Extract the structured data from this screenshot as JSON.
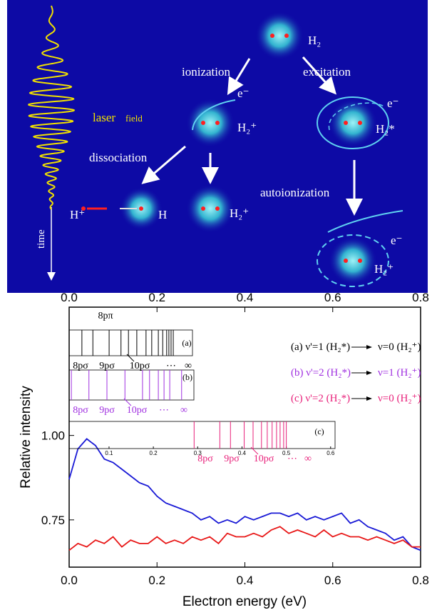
{
  "diagram": {
    "h2": "H₂",
    "ionization": "ionization",
    "excitation": "excitation",
    "electron_1": "e⁻",
    "electron_2": "e⁻",
    "electron_3": "e⁻",
    "h2_ion_1": "H₂⁺",
    "h2_excited": "H₂*",
    "laser": "laser",
    "field": "field",
    "dissociation": "dissociation",
    "autoionization": "autoionization",
    "proton": "H⁺",
    "hydrogen": "H",
    "h2_ion_2": "H₂⁺",
    "h2_ion_3": "H₂⁺",
    "time": "time"
  },
  "chart_data": {
    "type": "line",
    "x_label": "Electron energy (eV)",
    "y_label": "Relative intensity",
    "xlim": [
      0,
      0.8
    ],
    "ylim": [
      0.61,
      1.38
    ],
    "xticks": [
      {
        "value": 0,
        "label": "0.0"
      },
      0.2,
      0.4,
      0.6,
      0.8
    ],
    "yticks": [
      0.75,
      {
        "value": 1,
        "label": "1.00"
      }
    ],
    "x": [
      0,
      0.02,
      0.04,
      0.06,
      0.08,
      0.1,
      0.12,
      0.14,
      0.16,
      0.18,
      0.2,
      0.22,
      0.24,
      0.26,
      0.28,
      0.3,
      0.32,
      0.34,
      0.36,
      0.38,
      0.4,
      0.42,
      0.44,
      0.46,
      0.48,
      0.5,
      0.52,
      0.54,
      0.56,
      0.58,
      0.6,
      0.62,
      0.64,
      0.66,
      0.68,
      0.7,
      0.72,
      0.74,
      0.76,
      0.78,
      0.8
    ],
    "series": [
      {
        "color": "#1a1ad6",
        "values": [
          0.87,
          0.96,
          0.99,
          0.97,
          0.93,
          0.92,
          0.9,
          0.88,
          0.86,
          0.85,
          0.82,
          0.8,
          0.79,
          0.78,
          0.77,
          0.75,
          0.76,
          0.74,
          0.75,
          0.74,
          0.76,
          0.75,
          0.76,
          0.77,
          0.77,
          0.76,
          0.77,
          0.75,
          0.76,
          0.75,
          0.76,
          0.77,
          0.74,
          0.75,
          0.73,
          0.72,
          0.71,
          0.69,
          0.7,
          0.67,
          0.66
        ]
      },
      {
        "color": "#e81818",
        "values": [
          0.66,
          0.68,
          0.67,
          0.69,
          0.68,
          0.7,
          0.67,
          0.69,
          0.68,
          0.68,
          0.7,
          0.68,
          0.69,
          0.68,
          0.7,
          0.69,
          0.7,
          0.68,
          0.71,
          0.7,
          0.7,
          0.71,
          0.7,
          0.72,
          0.73,
          0.71,
          0.72,
          0.71,
          0.7,
          0.72,
          0.7,
          0.71,
          0.7,
          0.7,
          0.69,
          0.7,
          0.69,
          0.68,
          0.69,
          0.67,
          0.67
        ]
      }
    ],
    "insets": [
      {
        "label": "(a)",
        "color": "#000000",
        "transition": [
          "(a) ν'=1 (H₂*)",
          "ν=0 (H₂⁺)"
        ],
        "lines": [
          0.029,
          0.054,
          0.091,
          0.118,
          0.135,
          0.154,
          0.175,
          0.188,
          0.203,
          0.213,
          0.222,
          0.227,
          0.232,
          0.237
        ],
        "levels": [
          "8pπ",
          "8pσ",
          "9pσ",
          "10pσ",
          "⋯",
          "∞"
        ]
      },
      {
        "label": "(b)",
        "color": "#a030e0",
        "transition": [
          "(b) ν'=2 (H₂*)",
          "ν=1 (H₂⁺)"
        ],
        "lines": [
          0.005,
          0.045,
          0.086,
          0.127,
          0.167,
          0.183,
          0.203,
          0.216,
          0.229,
          0.256
        ],
        "levels": [
          "8pσ",
          "9pσ",
          "10pσ",
          "⋯",
          "∞"
        ]
      },
      {
        "label": "(c)",
        "color": "#e8207a",
        "transition": [
          "(c) ν'=2 (H₂*)",
          "ν=0 (H₂⁺)"
        ],
        "xlim": [
          0.01,
          0.61
        ],
        "xticks": [
          0.1,
          0.2,
          0.3,
          0.4,
          0.5,
          0.6
        ],
        "lines": [
          0.292,
          0.35,
          0.374,
          0.405,
          0.425,
          0.444,
          0.457,
          0.468,
          0.478,
          0.486,
          0.494,
          0.5
        ],
        "levels": [
          "8pσ",
          "9pσ",
          "10pσ",
          "⋯",
          "∞"
        ]
      }
    ]
  }
}
